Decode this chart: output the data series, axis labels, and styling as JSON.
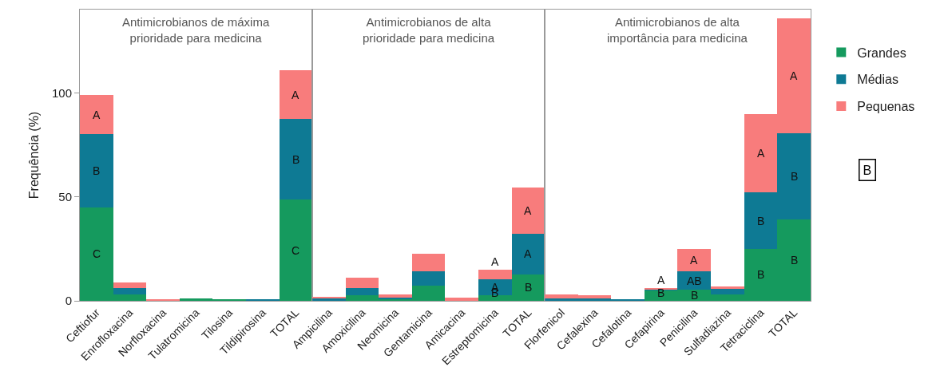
{
  "chart_data": [
    {
      "type": "bar",
      "stacked": true,
      "title": "Antimicrobianos de máxima prioridade para medicina",
      "ylabel": "Frequência (%)",
      "ylim": [
        0,
        140
      ],
      "yticks": [
        0,
        50,
        100
      ],
      "legend": "right",
      "categories": [
        "Ceftiofur",
        "Enrofloxacina",
        "Norfloxacina",
        "Tulatromicina",
        "Tilosina",
        "Tildipirosina",
        "TOTAL"
      ],
      "series": [
        {
          "name": "Grandes",
          "color": "#159a5e",
          "values": [
            45,
            3,
            0,
            1,
            0.7,
            0,
            48.6
          ],
          "value_labels": [
            "C",
            null,
            null,
            null,
            null,
            null,
            "C"
          ]
        },
        {
          "name": "Médias",
          "color": "#0e7a94",
          "values": [
            35,
            3,
            0,
            0,
            0,
            0.5,
            38.7
          ],
          "value_labels": [
            "B",
            null,
            null,
            null,
            null,
            null,
            "B"
          ]
        },
        {
          "name": "Pequenas",
          "color": "#f87c7c",
          "values": [
            19,
            3,
            0.5,
            0,
            0,
            0,
            23.5
          ],
          "value_labels": [
            "A",
            null,
            null,
            null,
            null,
            null,
            "A"
          ]
        }
      ]
    },
    {
      "type": "bar",
      "stacked": true,
      "title": "Antimicrobianos de alta prioridade para medicina",
      "ylim": [
        0,
        140
      ],
      "tick_labels": "x",
      "legend": "right",
      "categories": [
        "Ampicilina",
        "Amoxicilina",
        "Neomicina",
        "Gentamicina",
        "Amicacina",
        "Estreptomicina",
        "TOTAL"
      ],
      "series": [
        {
          "name": "Grandes",
          "color": "#159a5e",
          "values": [
            0,
            2.7,
            1,
            7.4,
            0,
            2.7,
            12.7
          ],
          "value_labels": [
            null,
            null,
            null,
            null,
            null,
            "B",
            "B"
          ]
        },
        {
          "name": "Médias",
          "color": "#0e7a94",
          "values": [
            1,
            3.3,
            0.7,
            6.8,
            0,
            7.7,
            19.7
          ],
          "value_labels": [
            null,
            null,
            null,
            null,
            null,
            "A",
            "A"
          ]
        },
        {
          "name": "Pequenas",
          "color": "#f87c7c",
          "values": [
            1,
            5,
            1.3,
            8.4,
            1.4,
            4.6,
            21.9
          ],
          "value_labels": [
            null,
            null,
            null,
            null,
            null,
            "A",
            "A"
          ]
        }
      ]
    },
    {
      "type": "bar",
      "stacked": true,
      "title": "Antimicrobianos de alta importância para medicina",
      "ylim": [
        0,
        140
      ],
      "tick_labels": "x",
      "legend": "right",
      "annotations": [
        "B"
      ],
      "categories": [
        "Florfenicol",
        "Cefalexina",
        "Cefalotina",
        "Cefapirina",
        "Penicilina",
        "Sulfadiazina",
        "Tetraciclina",
        "TOTAL"
      ],
      "series": [
        {
          "name": "Grandes",
          "color": "#159a5e",
          "values": [
            0,
            0,
            0,
            5,
            5.2,
            2.9,
            25,
            39.1
          ],
          "value_labels": [
            null,
            null,
            null,
            "B",
            "B",
            null,
            "B",
            "B"
          ]
        },
        {
          "name": "Médias",
          "color": "#0e7a94",
          "values": [
            1,
            1,
            0.9,
            0.3,
            9,
            2.9,
            27,
            41.5
          ],
          "value_labels": [
            null,
            null,
            null,
            null,
            "AB",
            null,
            "B",
            "B"
          ]
        },
        {
          "name": "Pequenas",
          "color": "#f87c7c",
          "values": [
            2,
            1.5,
            0,
            1,
            10.8,
            1.2,
            37.6,
            55.2
          ],
          "value_labels": [
            null,
            null,
            null,
            "A",
            "A",
            null,
            "A",
            "A"
          ]
        }
      ]
    }
  ]
}
